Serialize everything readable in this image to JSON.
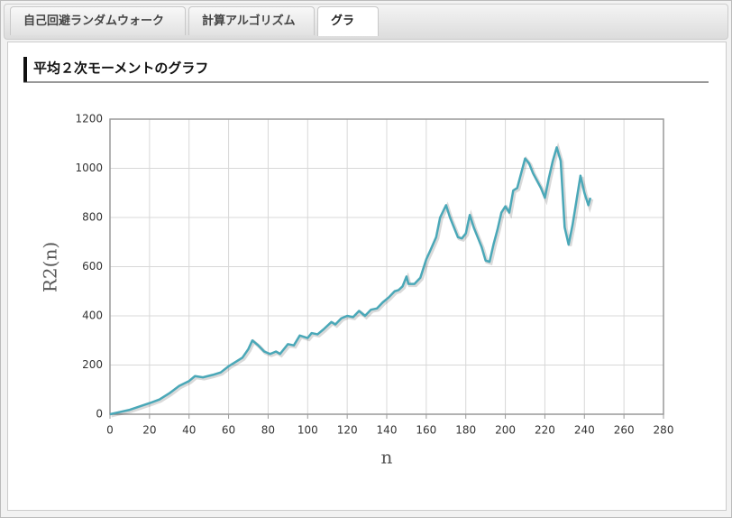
{
  "tabs": [
    "自己回避ランダムウォーク",
    "計算アルゴリズム",
    "グラフ"
  ],
  "heading": "平均２次モーメントのグラフ",
  "chart_data": {
    "type": "line",
    "x_label": "n",
    "y_label": "R2(n)",
    "x": [
      0,
      10,
      20,
      25,
      30,
      35,
      40,
      43,
      47,
      52,
      56,
      60,
      64,
      67,
      70,
      72,
      75,
      78,
      81,
      84,
      86,
      90,
      93,
      96,
      100,
      102,
      105,
      108,
      112,
      114,
      117,
      120,
      123,
      126,
      129,
      132,
      135,
      138,
      141,
      144,
      146,
      148,
      150,
      151,
      154,
      157,
      160,
      162,
      165,
      167,
      170,
      172,
      174,
      176,
      178,
      180,
      182,
      184,
      186,
      188,
      190,
      192,
      194,
      196,
      198,
      200,
      202,
      204,
      206,
      208,
      210,
      212,
      214,
      216,
      218,
      220,
      222,
      224,
      226,
      228,
      230,
      232,
      234,
      236,
      238,
      240,
      242,
      243
    ],
    "series": [
      {
        "name": "R2(n)",
        "color": "#4aa8b8",
        "values": [
          0,
          18,
          45,
          60,
          85,
          115,
          135,
          155,
          150,
          160,
          170,
          195,
          215,
          230,
          265,
          300,
          280,
          255,
          245,
          255,
          245,
          285,
          280,
          320,
          310,
          330,
          325,
          345,
          375,
          365,
          390,
          400,
          395,
          420,
          400,
          425,
          430,
          455,
          475,
          500,
          505,
          520,
          560,
          530,
          530,
          555,
          630,
          665,
          720,
          800,
          850,
          800,
          760,
          720,
          715,
          735,
          810,
          760,
          720,
          680,
          625,
          620,
          690,
          750,
          820,
          845,
          820,
          910,
          920,
          980,
          1040,
          1020,
          980,
          950,
          920,
          880,
          960,
          1030,
          1085,
          1030,
          760,
          690,
          770,
          870,
          970,
          900,
          850,
          880
        ]
      }
    ],
    "xlim": [
      0,
      280
    ],
    "xticks": [
      0,
      20,
      40,
      60,
      80,
      100,
      120,
      140,
      160,
      180,
      200,
      220,
      240,
      260,
      280
    ],
    "ylim": [
      0,
      1200
    ],
    "yticks": [
      0,
      200,
      400,
      600,
      800,
      1000,
      1200
    ],
    "grid": true
  }
}
